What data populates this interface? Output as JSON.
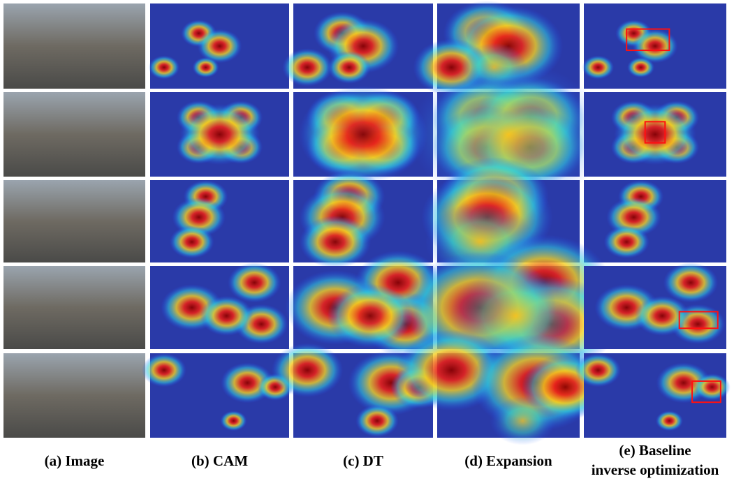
{
  "figure": {
    "captions": [
      {
        "lines": [
          "(a) Image"
        ]
      },
      {
        "lines": [
          "(b) CAM"
        ]
      },
      {
        "lines": [
          "(c) DT"
        ]
      },
      {
        "lines": [
          "(d) Expansion"
        ]
      },
      {
        "lines": [
          "(e) Baseline",
          "inverse optimization"
        ]
      }
    ]
  }
}
